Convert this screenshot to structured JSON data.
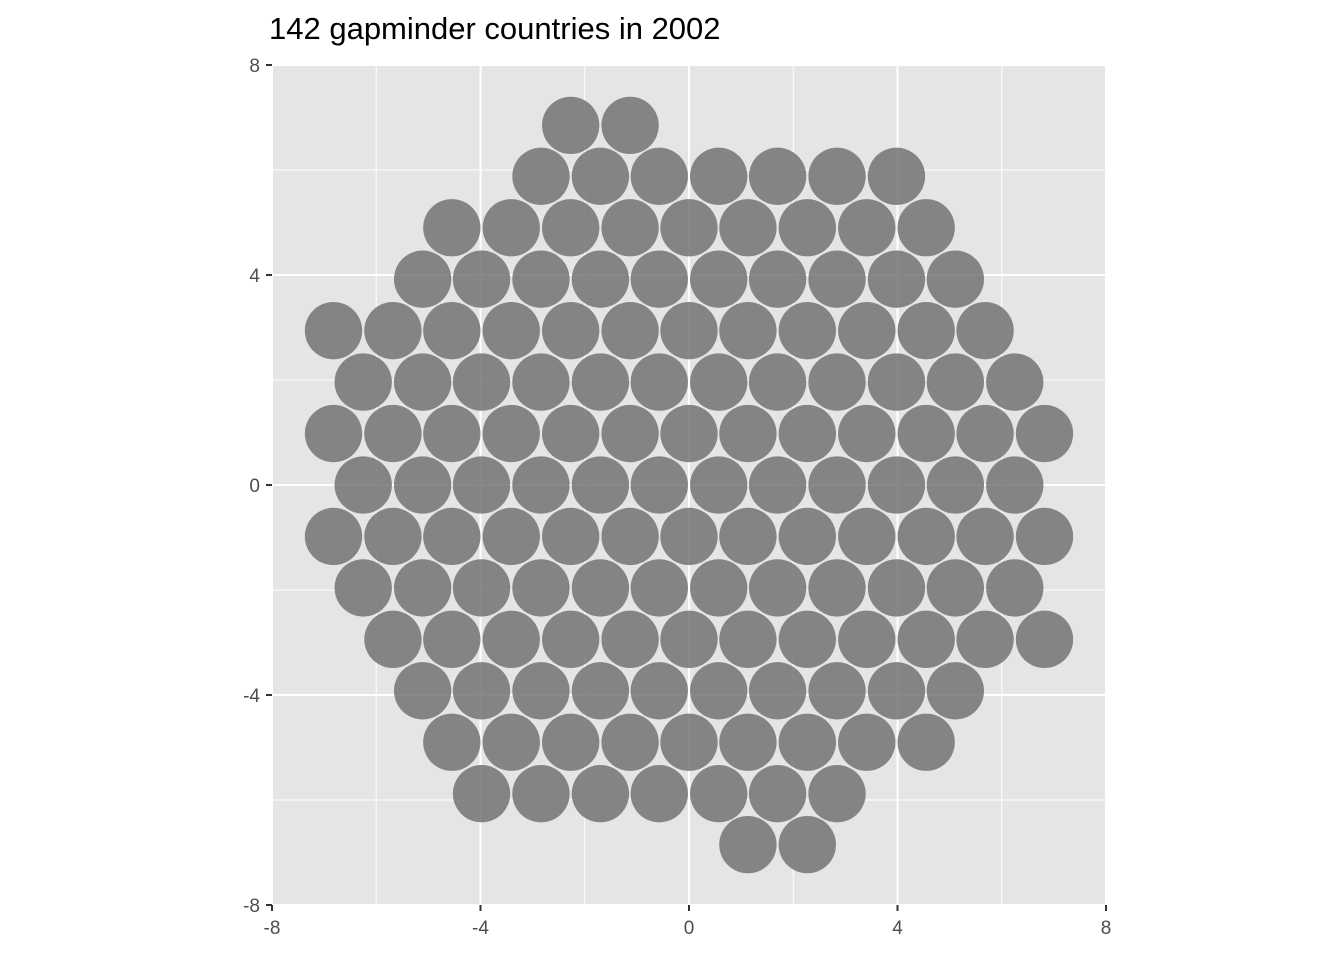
{
  "chart_data": {
    "type": "scatter",
    "title": "142 gapminder countries in 2002",
    "xlabel": "",
    "ylabel": "",
    "xlim": [
      -8,
      8
    ],
    "ylim": [
      -8,
      8
    ],
    "x_ticks": [
      -8,
      -4,
      0,
      4,
      8
    ],
    "y_ticks": [
      -8,
      -4,
      0,
      4,
      8
    ],
    "x_tick_labels": [
      "-8",
      "-4",
      "0",
      "4",
      "8"
    ],
    "y_tick_labels": [
      "-8",
      "-4",
      "0",
      "4",
      "8"
    ],
    "grid": true,
    "marker": "circle",
    "point_radius": 0.55,
    "point_color": "#737373",
    "point_opacity": 0.85,
    "panel_background": "#e5e5e5",
    "grid_color": "#ffffff",
    "rows": [
      {
        "y": 6.85,
        "x": [
          -2.27,
          -1.13
        ]
      },
      {
        "y": 5.88,
        "x": [
          -2.84,
          -1.7,
          -0.57,
          0.57,
          1.7,
          2.84,
          3.98
        ]
      },
      {
        "y": 4.9,
        "x": [
          -4.55,
          -3.41,
          -2.27,
          -1.13,
          0.0,
          1.13,
          2.27,
          3.41,
          4.55
        ]
      },
      {
        "y": 3.92,
        "x": [
          -5.11,
          -3.98,
          -2.84,
          -1.7,
          -0.57,
          0.57,
          1.7,
          2.84,
          3.98,
          5.11
        ]
      },
      {
        "y": 2.94,
        "x": [
          -6.82,
          -5.68,
          -4.55,
          -3.41,
          -2.27,
          -1.13,
          0.0,
          1.13,
          2.27,
          3.41,
          4.55,
          5.68
        ]
      },
      {
        "y": 1.96,
        "x": [
          -6.25,
          -5.11,
          -3.98,
          -2.84,
          -1.7,
          -0.57,
          0.57,
          1.7,
          2.84,
          3.98,
          5.11,
          6.25
        ]
      },
      {
        "y": 0.98,
        "x": [
          -6.82,
          -5.68,
          -4.55,
          -3.41,
          -2.27,
          -1.13,
          0.0,
          1.13,
          2.27,
          3.41,
          4.55,
          5.68,
          6.82
        ]
      },
      {
        "y": 0.0,
        "x": [
          -6.25,
          -5.11,
          -3.98,
          -2.84,
          -1.7,
          -0.57,
          0.57,
          1.7,
          2.84,
          3.98,
          5.11,
          6.25
        ]
      },
      {
        "y": -0.98,
        "x": [
          -6.82,
          -5.68,
          -4.55,
          -3.41,
          -2.27,
          -1.13,
          0.0,
          1.13,
          2.27,
          3.41,
          4.55,
          5.68,
          6.82
        ]
      },
      {
        "y": -1.96,
        "x": [
          -6.25,
          -5.11,
          -3.98,
          -2.84,
          -1.7,
          -0.57,
          0.57,
          1.7,
          2.84,
          3.98,
          5.11,
          6.25
        ]
      },
      {
        "y": -2.94,
        "x": [
          -5.68,
          -4.55,
          -3.41,
          -2.27,
          -1.13,
          0.0,
          1.13,
          2.27,
          3.41,
          4.55,
          5.68,
          6.82
        ]
      },
      {
        "y": -3.92,
        "x": [
          -5.11,
          -3.98,
          -2.84,
          -1.7,
          -0.57,
          0.57,
          1.7,
          2.84,
          3.98,
          5.11
        ]
      },
      {
        "y": -4.9,
        "x": [
          -4.55,
          -3.41,
          -2.27,
          -1.13,
          0.0,
          1.13,
          2.27,
          3.41,
          4.55
        ]
      },
      {
        "y": -5.88,
        "x": [
          -3.98,
          -2.84,
          -1.7,
          -0.57,
          0.57,
          1.7,
          2.84
        ]
      },
      {
        "y": -6.85,
        "x": [
          1.13,
          2.27
        ]
      }
    ]
  }
}
